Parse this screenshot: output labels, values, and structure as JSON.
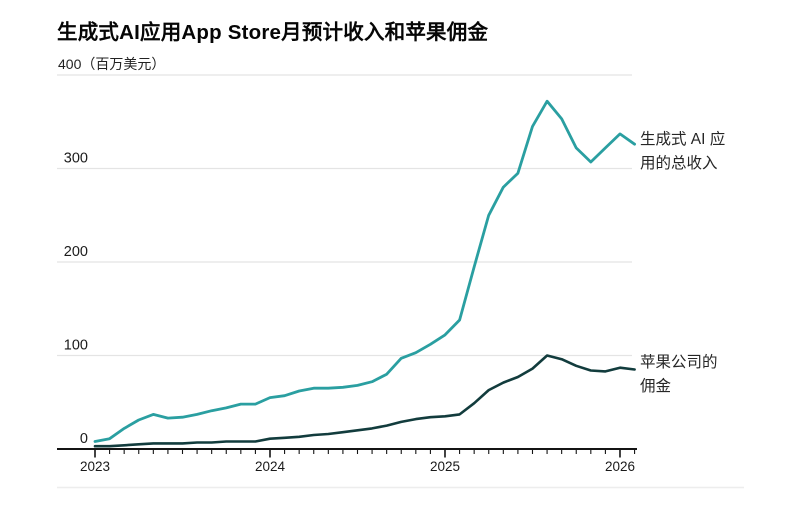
{
  "header": {
    "title": "生成式AI应用App Store月预计收入和苹果佣金",
    "y_axis_top_value": "400",
    "y_axis_unit": "（百万美元）"
  },
  "chart_data": {
    "type": "line",
    "title": "生成式AI应用App Store月预计收入和苹果佣金",
    "ylabel": "百万美元",
    "ylim": [
      0,
      400
    ],
    "yticks": [
      0,
      100,
      200,
      300,
      400
    ],
    "grid": true,
    "legend_position": "right-annotations",
    "x_unit": "month",
    "xticks_years": [
      "2023",
      "2024",
      "2025",
      "2026"
    ],
    "x": [
      "2023-01",
      "2023-02",
      "2023-03",
      "2023-04",
      "2023-05",
      "2023-06",
      "2023-07",
      "2023-08",
      "2023-09",
      "2023-10",
      "2023-11",
      "2023-12",
      "2024-01",
      "2024-02",
      "2024-03",
      "2024-04",
      "2024-05",
      "2024-06",
      "2024-07",
      "2024-08",
      "2024-09",
      "2024-10",
      "2024-11",
      "2024-12",
      "2025-01",
      "2025-02",
      "2025-03",
      "2025-04",
      "2025-05",
      "2025-06",
      "2025-07",
      "2025-08",
      "2025-09",
      "2025-10",
      "2025-11",
      "2025-12",
      "2026-01",
      "2026-02"
    ],
    "series": [
      {
        "key": "revenue",
        "name": "生成式 AI 应用的总收入",
        "color": "#2A9FA1",
        "values": [
          8,
          11,
          22,
          31,
          37,
          33,
          34,
          37,
          41,
          44,
          48,
          48,
          55,
          57,
          62,
          65,
          65,
          66,
          68,
          72,
          80,
          97,
          103,
          112,
          122,
          138,
          195,
          250,
          280,
          295,
          345,
          372,
          353,
          322,
          307,
          322,
          337,
          326
        ]
      },
      {
        "key": "commission",
        "name": "苹果公司的佣金",
        "color": "#123C3D",
        "values": [
          3,
          3,
          4,
          5,
          6,
          6,
          6,
          7,
          7,
          8,
          8,
          8,
          11,
          12,
          13,
          15,
          16,
          18,
          20,
          22,
          25,
          29,
          32,
          34,
          35,
          37,
          49,
          63,
          71,
          77,
          86,
          100,
          96,
          89,
          84,
          83,
          87,
          85
        ]
      }
    ],
    "annotations": [
      {
        "key": "revenue",
        "lines": [
          "生成式 AI 应",
          "用的总收入"
        ]
      },
      {
        "key": "commission",
        "lines": [
          "苹果公司的",
          "佣金"
        ]
      }
    ]
  }
}
